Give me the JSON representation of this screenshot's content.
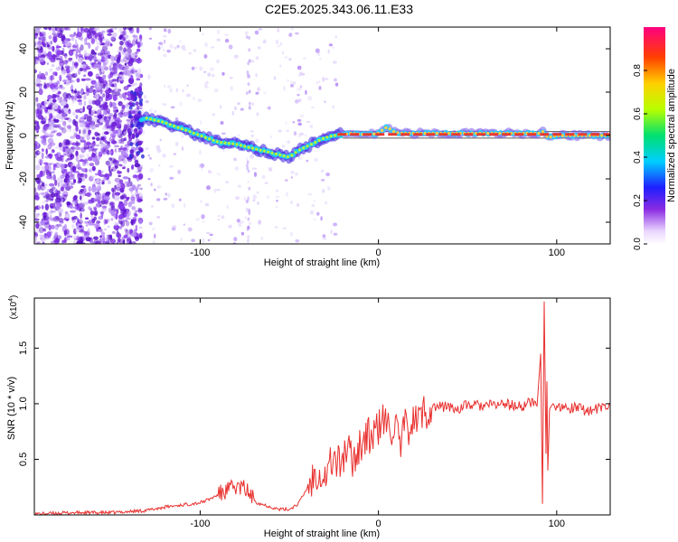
{
  "title": "C2E5.2025.343.06.11.E33",
  "colors": {
    "snr_line": "#e8302e",
    "track_core": "#e83a2e",
    "noise_purple": "#6a1bd6",
    "gray_line": "#888888"
  },
  "chart_data": [
    {
      "id": "spectrogram",
      "type": "heatmap",
      "xlabel": "Height of straight line (km)",
      "ylabel": "Frequency (Hz)",
      "xlim": [
        -193,
        130
      ],
      "ylim": [
        -50,
        50
      ],
      "xticks": [
        -100,
        0,
        100
      ],
      "xtick_labels": [
        "-100",
        "0",
        "100"
      ],
      "yticks": [
        -40,
        -20,
        0,
        20,
        40
      ],
      "ytick_labels": [
        "-40",
        "-20",
        "0",
        "20",
        "40"
      ],
      "colorbar": {
        "label": "Normalized spectral amplitude",
        "range": [
          0,
          1
        ],
        "ticks": [
          0,
          0.2,
          0.4,
          0.6,
          0.8
        ],
        "tick_labels": [
          "0.0",
          "0.2",
          "0.4",
          "0.6",
          "0.8"
        ]
      },
      "ridge_frequency_hz": {
        "x": [
          -135,
          -130,
          -125,
          -120,
          -110,
          -100,
          -90,
          -80,
          -70,
          -60,
          -55,
          -50,
          -45,
          -40,
          -35,
          -30,
          -25,
          -20,
          -15,
          -10,
          -5,
          0,
          3,
          5,
          8,
          12,
          20,
          40,
          60,
          80,
          90,
          92,
          95,
          100,
          130
        ],
        "y": [
          7,
          8,
          7,
          6,
          3,
          0,
          -3,
          -4,
          -6,
          -8,
          -9,
          -10,
          -7,
          -5,
          -3,
          -1,
          0,
          0.5,
          1,
          0.5,
          0.5,
          1,
          3,
          4,
          2,
          1,
          1,
          1,
          1,
          1,
          1,
          2,
          -1,
          0,
          0
        ]
      },
      "track_label_x_start": -23
    },
    {
      "id": "snr",
      "type": "line",
      "xlabel": "Height of straight line (km)",
      "ylabel": "SNR (10 * v/v)",
      "exponent_label": "(x10",
      "exponent_power": "4",
      "exponent_close": ")",
      "xlim": [
        -193,
        130
      ],
      "ylim": [
        0,
        1.95
      ],
      "xticks": [
        -100,
        0,
        100
      ],
      "xtick_labels": [
        "-100",
        "0",
        "100"
      ],
      "yticks": [
        0.5,
        1.0,
        1.5
      ],
      "ytick_labels": [
        "0.5",
        "1.0",
        "1.5"
      ],
      "series": [
        {
          "name": "SNR",
          "x": [
            -193,
            -170,
            -150,
            -140,
            -130,
            -120,
            -110,
            -100,
            -95,
            -90,
            -85,
            -80,
            -75,
            -72,
            -68,
            -62,
            -56,
            -50,
            -45,
            -42,
            -38,
            -34,
            -30,
            -26,
            -22,
            -18,
            -14,
            -10,
            -6,
            -2,
            2,
            6,
            10,
            12,
            14,
            18,
            22,
            26,
            30,
            34,
            38,
            40,
            44,
            50,
            60,
            70,
            80,
            86,
            89,
            91,
            92,
            93,
            94,
            94.5,
            95,
            96,
            97,
            98,
            100,
            110,
            120,
            130
          ],
          "y": [
            0.01,
            0.02,
            0.02,
            0.03,
            0.04,
            0.07,
            0.09,
            0.11,
            0.14,
            0.18,
            0.22,
            0.25,
            0.24,
            0.18,
            0.11,
            0.08,
            0.05,
            0.05,
            0.1,
            0.18,
            0.3,
            0.42,
            0.34,
            0.5,
            0.46,
            0.58,
            0.5,
            0.65,
            0.7,
            0.72,
            0.85,
            0.78,
            0.8,
            0.55,
            0.76,
            0.82,
            0.86,
            0.93,
            0.97,
            0.97,
            0.98,
            0.97,
            0.95,
            0.99,
            0.98,
            1.0,
            0.97,
            1.02,
            0.98,
            1.45,
            0.1,
            1.92,
            0.55,
            1.2,
            0.4,
            0.95,
            0.98,
            1.0,
            0.95,
            0.96,
            0.94,
            0.98
          ]
        }
      ]
    }
  ]
}
